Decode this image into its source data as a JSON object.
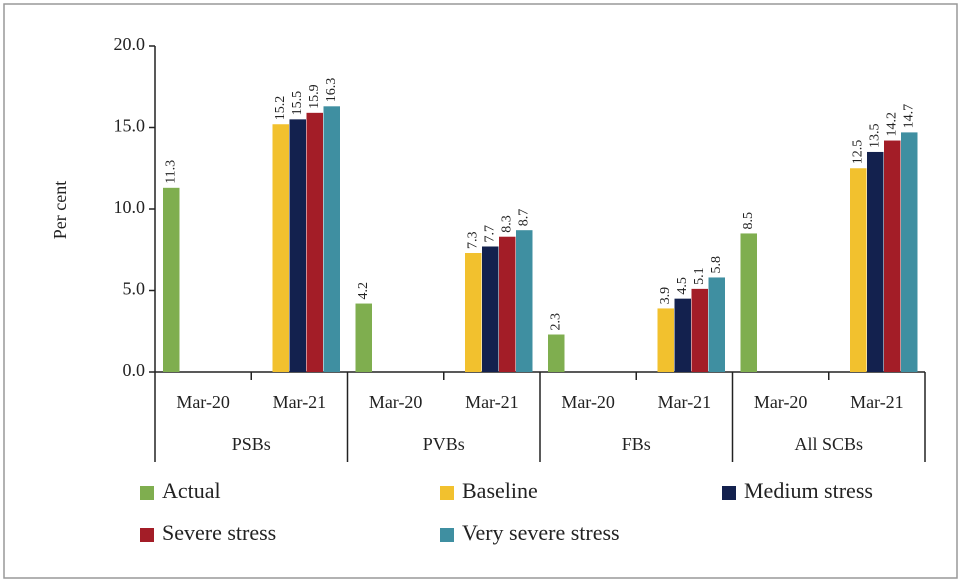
{
  "chart_data": {
    "type": "bar",
    "y_label": "Per cent",
    "categories": [
      "Mar-20",
      "Mar-21",
      "Mar-20",
      "Mar-21",
      "Mar-20",
      "Mar-21",
      "Mar-20",
      "Mar-21"
    ],
    "groups": [
      "PSBs",
      "PVBs",
      "FBs",
      "All SCBs"
    ],
    "series": [
      {
        "name": "Actual",
        "color": "#7fae4f",
        "values": [
          11.3,
          null,
          4.2,
          null,
          2.3,
          null,
          8.5,
          null
        ]
      },
      {
        "name": "Baseline",
        "color": "#f2c12e",
        "values": [
          null,
          15.2,
          null,
          7.3,
          null,
          3.9,
          null,
          12.5
        ]
      },
      {
        "name": "Medium stress",
        "color": "#13214e",
        "values": [
          null,
          15.5,
          null,
          7.7,
          null,
          4.5,
          null,
          13.5
        ]
      },
      {
        "name": "Severe stress",
        "color": "#a31d27",
        "values": [
          null,
          15.9,
          null,
          8.3,
          null,
          5.1,
          null,
          14.2
        ]
      },
      {
        "name": "Very severe stress",
        "color": "#3f8fa1",
        "values": [
          null,
          16.3,
          null,
          8.7,
          null,
          5.8,
          null,
          14.7
        ]
      }
    ],
    "ylim": [
      0,
      20
    ],
    "yticks": [
      {
        "value": 0,
        "label": "0.0"
      },
      {
        "value": 5,
        "label": "5.0"
      },
      {
        "value": 10,
        "label": "10.0"
      },
      {
        "value": 15,
        "label": "15.0"
      },
      {
        "value": 20,
        "label": "20.0"
      }
    ],
    "grid": false
  }
}
